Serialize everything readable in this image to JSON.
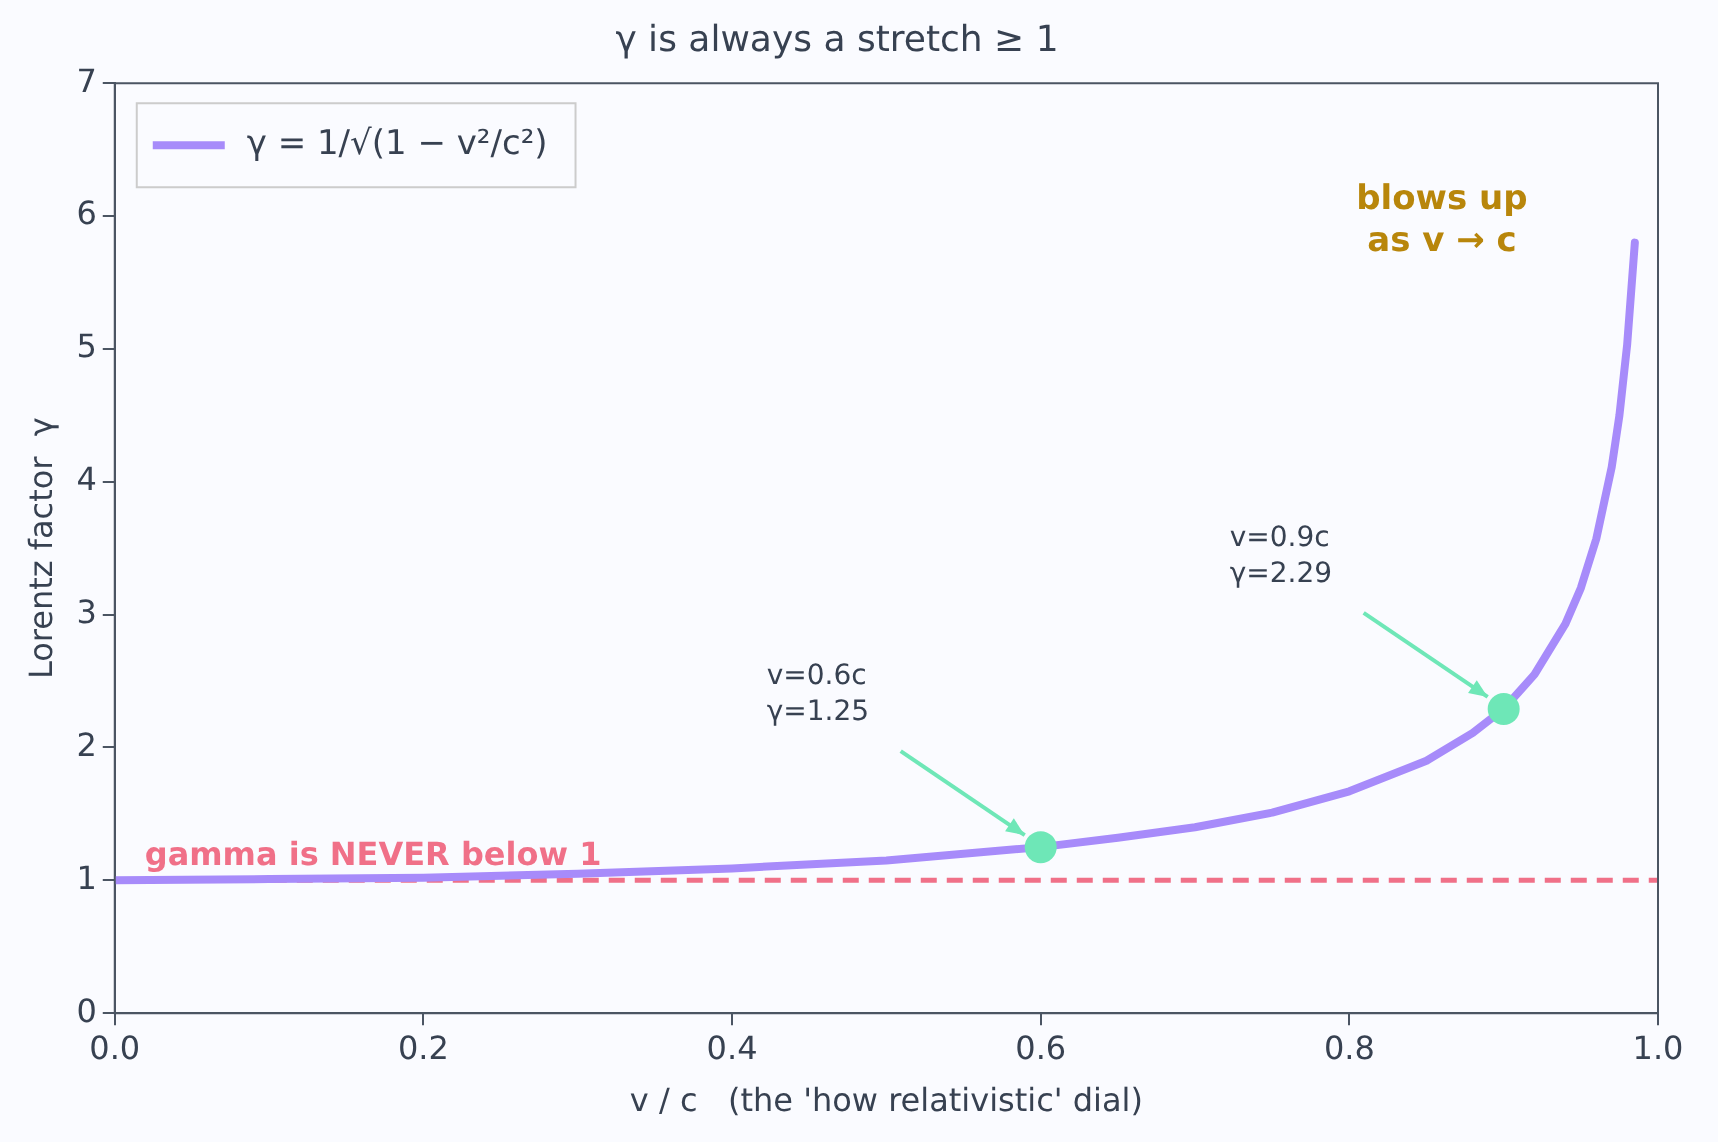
{
  "chart_data": {
    "type": "line",
    "title": "γ is always a stretch ≥ 1",
    "xlabel": "v / c   (the 'how relativistic' dial)",
    "ylabel": "Lorentz factor  γ",
    "xlim": [
      0,
      1
    ],
    "xticks": [
      {
        "value": 0,
        "label": "0.0"
      },
      0.2,
      0.4,
      0.6,
      0.8,
      {
        "value": 1,
        "label": "1.0"
      }
    ],
    "ylim": [
      0,
      7
    ],
    "yticks": [
      0,
      1,
      2,
      3,
      4,
      5,
      6,
      7
    ],
    "grid": false,
    "legend": "top left",
    "marker": "none",
    "line_style": "solid",
    "series": [
      {
        "name": "γ = 1/√(1 − v²/c²)",
        "color": "#a78bfa",
        "x": [
          0,
          0.1,
          0.2,
          0.3,
          0.4,
          0.5,
          0.6,
          0.65,
          0.7,
          0.75,
          0.8,
          0.85,
          0.88,
          0.9,
          0.92,
          0.94,
          0.95,
          0.96,
          0.97,
          0.975,
          0.98,
          0.985
        ],
        "values": [
          1,
          1.01,
          1.02,
          1.05,
          1.09,
          1.15,
          1.25,
          1.32,
          1.4,
          1.51,
          1.67,
          1.9,
          2.11,
          2.29,
          2.55,
          2.93,
          3.2,
          3.57,
          4.11,
          4.5,
          5.03,
          5.8
        ]
      },
      {
        "type": "scatter",
        "color": "#6ee7b7",
        "marker": "circle",
        "x": [
          0.6,
          0.9
        ],
        "values": [
          1.25,
          2.29
        ]
      }
    ],
    "ref_lines": [
      {
        "axis": "y",
        "value": 1,
        "label": "gamma is NEVER below 1",
        "color": "#f07088",
        "line_style": "dashed"
      }
    ],
    "annotations": [
      "v=0.6c\nγ=1.25",
      "v=0.9c\nγ=2.29",
      "blows up\nas v → c"
    ]
  }
}
